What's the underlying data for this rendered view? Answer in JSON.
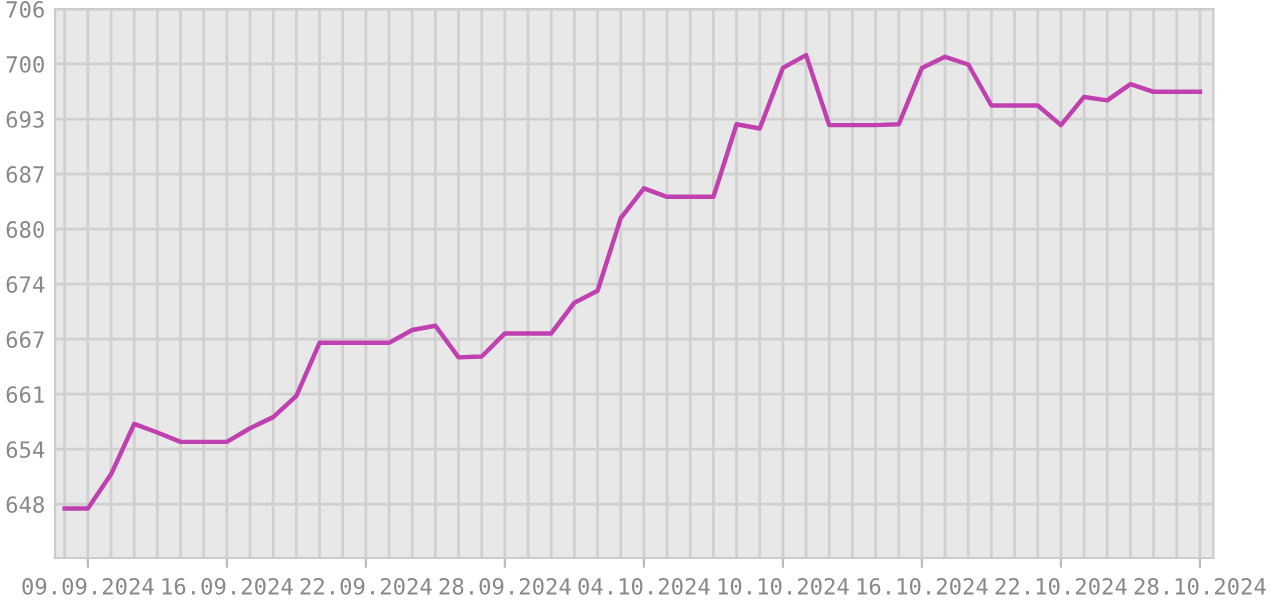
{
  "chart_data": {
    "type": "line",
    "x": [
      "2024-09-09",
      "2024-09-10",
      "2024-09-11",
      "2024-09-12",
      "2024-09-13",
      "2024-09-14",
      "2024-09-15",
      "2024-09-16",
      "2024-09-17",
      "2024-09-18",
      "2024-09-19",
      "2024-09-20",
      "2024-09-21",
      "2024-09-22",
      "2024-09-23",
      "2024-09-24",
      "2024-09-25",
      "2024-09-26",
      "2024-09-27",
      "2024-09-28",
      "2024-09-29",
      "2024-09-30",
      "2024-10-01",
      "2024-10-02",
      "2024-10-03",
      "2024-10-04",
      "2024-10-05",
      "2024-10-06",
      "2024-10-07",
      "2024-10-08",
      "2024-10-09",
      "2024-10-10",
      "2024-10-11",
      "2024-10-12",
      "2024-10-13",
      "2024-10-14",
      "2024-10-15",
      "2024-10-16",
      "2024-10-17",
      "2024-10-18",
      "2024-10-19",
      "2024-10-20",
      "2024-10-21",
      "2024-10-22",
      "2024-10-23",
      "2024-10-24",
      "2024-10-25",
      "2024-10-26",
      "2024-10-27",
      "2024-10-28"
    ],
    "series": [
      {
        "color": "#c040b0",
        "values": [
          647.5,
          647.5,
          651.5,
          657.4,
          656.4,
          655.3,
          655.3,
          655.3,
          656.9,
          658.2,
          660.7,
          666.9,
          666.9,
          666.9,
          666.9,
          668.4,
          668.9,
          665.2,
          665.3,
          668.0,
          668.0,
          668.0,
          671.6,
          673.0,
          681.5,
          685.0,
          684.0,
          684.0,
          684.0,
          692.5,
          692.0,
          699.1,
          700.6,
          692.4,
          692.4,
          692.4,
          692.5,
          699.1,
          700.4,
          699.5,
          694.7,
          694.7,
          694.7,
          692.4,
          695.7,
          695.3,
          697.2,
          696.3,
          696.3,
          696.3
        ]
      }
    ],
    "xlim": [
      "2024-09-08T14:00",
      "2024-10-28T14:00"
    ],
    "xticks": [
      {
        "value": "2024-09-10",
        "label": "09.09.2024"
      },
      {
        "value": "2024-09-16",
        "label": "16.09.2024"
      },
      {
        "value": "2024-09-22",
        "label": "22.09.2024"
      },
      {
        "value": "2024-09-28",
        "label": "28.09.2024"
      },
      {
        "value": "2024-10-04",
        "label": "04.10.2024"
      },
      {
        "value": "2024-10-10",
        "label": "10.10.2024"
      },
      {
        "value": "2024-10-16",
        "label": "16.10.2024"
      },
      {
        "value": "2024-10-22",
        "label": "22.10.2024"
      },
      {
        "value": "2024-10-28",
        "label": "28.10.2024"
      }
    ],
    "ylim": [
      641.7,
      706
    ],
    "yticks": [
      648,
      {
        "value": 654.44,
        "label": "654"
      },
      {
        "value": 660.89,
        "label": "661"
      },
      {
        "value": 667.33,
        "label": "667"
      },
      {
        "value": 673.78,
        "label": "674"
      },
      {
        "value": 680.22,
        "label": "680"
      },
      {
        "value": 686.67,
        "label": "687"
      },
      {
        "value": 693.11,
        "label": "693"
      },
      {
        "value": 699.56,
        "label": "700"
      },
      706
    ],
    "grid": true,
    "marker": "none",
    "line_style": "solid"
  }
}
